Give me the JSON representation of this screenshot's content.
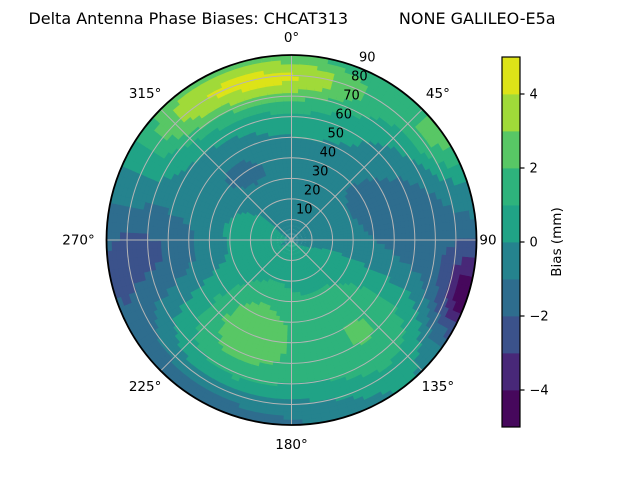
{
  "title": "Delta Antenna Phase Biases: CHCAT313          NONE GALILEO-E5a",
  "chart_data": {
    "type": "polar_filled_contour",
    "title": "Delta Antenna Phase Biases: CHCAT313          NONE GALILEO-E5a",
    "description": "Skyplot of antenna phase bias: azimuth 0-360 deg clockwise from top, zenith angle 0 (center) to 90 (edge), filled contours of bias in mm with viridis colormap, contour levels every 1 mm from -5 to 5",
    "angular_ticks": [
      {
        "angle": 0,
        "label": "0°"
      },
      {
        "angle": 45,
        "label": "45°"
      },
      {
        "angle": 90,
        "label": "90"
      },
      {
        "angle": 135,
        "label": "135°"
      },
      {
        "angle": 180,
        "label": "180°"
      },
      {
        "angle": 225,
        "label": "225°"
      },
      {
        "angle": 270,
        "label": "270°"
      },
      {
        "angle": 315,
        "label": "315°"
      }
    ],
    "radial_ticks": [
      10,
      20,
      30,
      40,
      50,
      60,
      70,
      80,
      90
    ],
    "radial_max": 90,
    "radial_label_angle_deg": 22.5,
    "levels": [
      -5,
      -4,
      -3,
      -2,
      -1,
      0,
      1,
      2,
      3,
      4,
      5
    ],
    "level_colors": [
      "#46085c",
      "#482878",
      "#3b528b",
      "#2e6d8e",
      "#25838e",
      "#20a386",
      "#2eb37c",
      "#58c765",
      "#a0da39",
      "#dde318"
    ],
    "grid_color": "#b5b5b5",
    "edge_color": "#000000",
    "colorbar": {
      "label": "Bias (mm)",
      "ticks": [
        {
          "value": 4,
          "label": "4"
        },
        {
          "value": 2,
          "label": "2"
        },
        {
          "value": 0,
          "label": "0"
        },
        {
          "value": -2,
          "label": "−2"
        },
        {
          "value": -4,
          "label": "−4"
        }
      ],
      "vmin": -5,
      "vmax": 5
    },
    "field_model": {
      "base": -0.3,
      "bumps": [
        {
          "a": 3.3,
          "az": 355,
          "r": 80,
          "saz": 25,
          "sr": 8,
          "note": "north yellow-green blob"
        },
        {
          "a": 1.8,
          "az": 322,
          "r": 86,
          "saz": 15,
          "sr": 14,
          "note": "NW rim bright streak"
        },
        {
          "a": 2.5,
          "az": 55,
          "r": 88,
          "saz": 10,
          "sr": 10,
          "note": "NE rim green patch"
        },
        {
          "a": 1.2,
          "az": 0,
          "r": 70,
          "saz": 50,
          "sr": 25,
          "note": "broad north positive band"
        },
        {
          "a": 2.2,
          "az": 205,
          "r": 52,
          "saz": 20,
          "sr": 18,
          "note": "SW green blob"
        },
        {
          "a": 1.7,
          "az": 140,
          "r": 60,
          "saz": 20,
          "sr": 20,
          "note": "SE green blob"
        },
        {
          "a": 1.1,
          "az": 175,
          "r": 40,
          "saz": 55,
          "sr": 26,
          "note": "central-south positive area"
        },
        {
          "a": 0.8,
          "az": 285,
          "r": 25,
          "saz": 25,
          "sr": 15,
          "note": "west inner light patch"
        },
        {
          "a": -2.2,
          "az": 265,
          "r": 70,
          "saz": 16,
          "sr": 20,
          "note": "west dark blue blob"
        },
        {
          "a": -3.6,
          "az": 108,
          "r": 88,
          "saz": 12,
          "sr": 10,
          "note": "east rim purple patch"
        },
        {
          "a": -1.2,
          "az": 108,
          "r": 93,
          "saz": 7,
          "sr": 6,
          "note": "east rim darkest core"
        },
        {
          "a": -0.9,
          "az": 0,
          "r": 38,
          "saz": 55,
          "sr": 12,
          "note": "north inner dark arc"
        },
        {
          "a": -0.9,
          "az": 318,
          "r": 48,
          "saz": 20,
          "sr": 16,
          "note": "NW mid-radius dark patch"
        },
        {
          "a": -1.3,
          "az": 70,
          "r": 60,
          "saz": 22,
          "sr": 22,
          "note": "east upper dark region"
        },
        {
          "a": -1.5,
          "az": 210,
          "r": 88,
          "saz": 40,
          "sr": 8,
          "note": "south rim dark arc"
        },
        {
          "a": -1.0,
          "az": 100,
          "r": 62,
          "saz": 18,
          "sr": 16,
          "note": "ESE mid dark patch"
        }
      ]
    },
    "sampled_grid": {
      "azimuth_deg": [
        0,
        45,
        90,
        135,
        180,
        225,
        270,
        315
      ],
      "zenith_deg": [
        0,
        30,
        60,
        85
      ],
      "bias_mm": [
        [
          -0.3,
          -1.2,
          1.6,
          3.2
        ],
        [
          -0.5,
          -1.0,
          -0.6,
          1.8
        ],
        [
          -0.3,
          -0.6,
          -1.4,
          -2.8
        ],
        [
          0.2,
          0.6,
          1.8,
          -1.5
        ],
        [
          0.3,
          1.0,
          1.4,
          -0.6
        ],
        [
          0.2,
          1.4,
          1.6,
          -1.0
        ],
        [
          0.1,
          -0.4,
          -2.4,
          -1.8
        ],
        [
          -0.2,
          -1.1,
          0.8,
          2.6
        ]
      ]
    }
  }
}
